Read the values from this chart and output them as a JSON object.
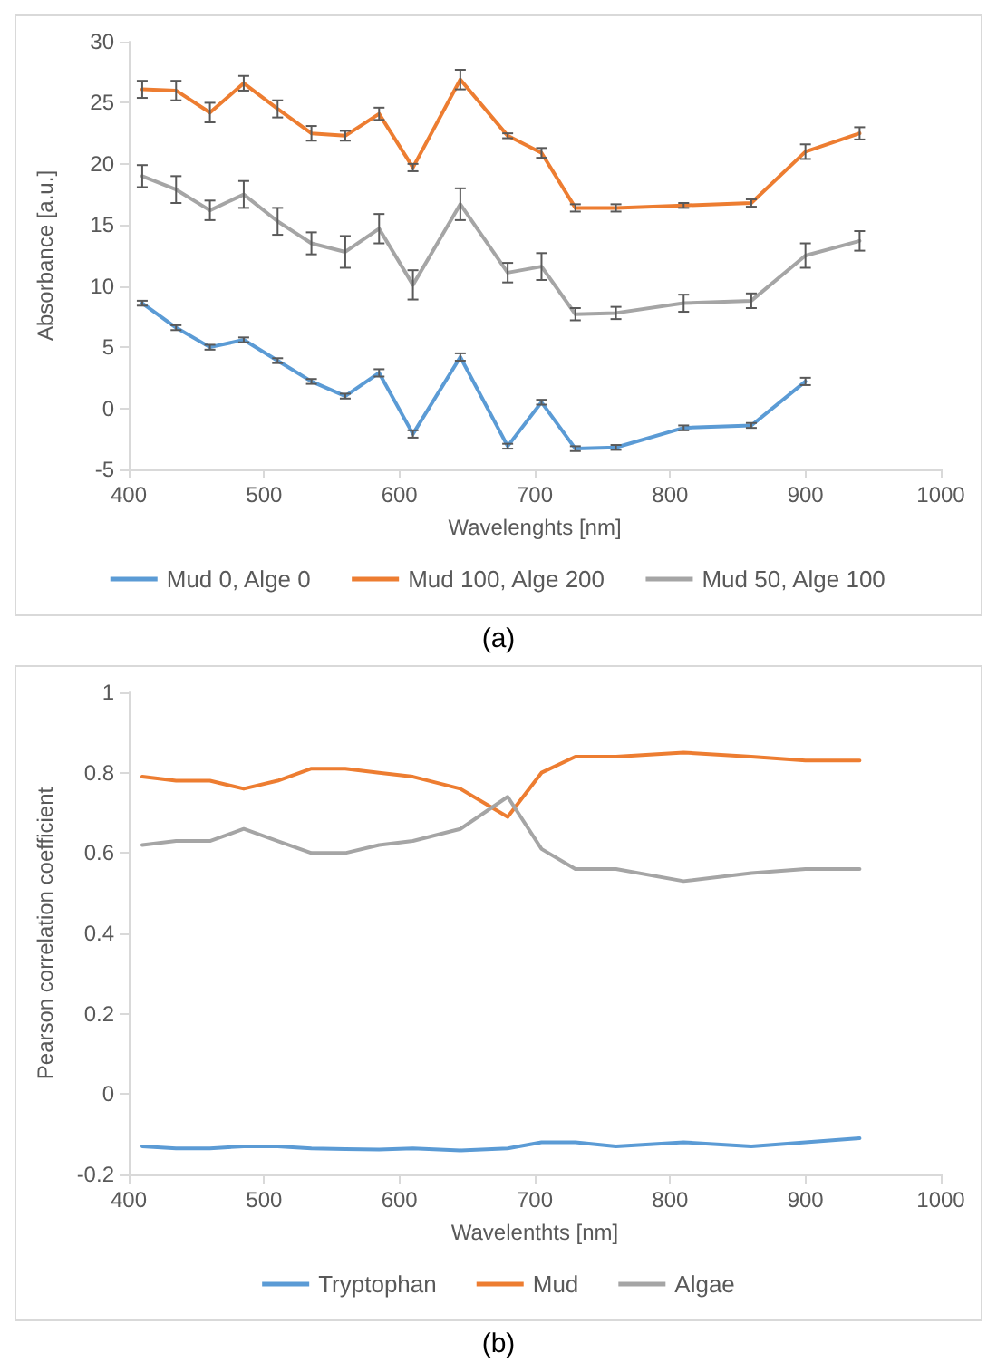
{
  "chart_data": [
    {
      "type": "line",
      "xlabel": "Wavelenghts [nm]",
      "ylabel": "Absorbance [a.u.]",
      "xlim": [
        400,
        1000
      ],
      "xticks": [
        400,
        500,
        600,
        700,
        800,
        900,
        1000
      ],
      "ylim": [
        -5,
        30
      ],
      "yticks": [
        -5,
        0,
        5,
        10,
        15,
        20,
        25,
        30
      ],
      "grid": false,
      "legend": "bottom",
      "marker": "none",
      "annotations": [
        "(a)"
      ],
      "x": [
        410,
        435,
        460,
        485,
        510,
        535,
        560,
        585,
        610,
        645,
        680,
        705,
        730,
        760,
        810,
        860,
        900,
        940
      ],
      "series": [
        {
          "name": "Mud 0, Alge 0",
          "color": "#5b9bd5",
          "values": [
            8.6,
            6.6,
            5.0,
            5.6,
            3.9,
            2.2,
            1.0,
            2.9,
            -2.1,
            4.2,
            -3.1,
            0.5,
            -3.3,
            -3.2,
            -1.6,
            -1.4,
            2.2,
            null
          ],
          "errors": [
            0.2,
            0.2,
            0.2,
            0.2,
            0.2,
            0.2,
            0.2,
            0.3,
            0.3,
            0.3,
            0.2,
            0.2,
            0.2,
            0.2,
            0.2,
            0.2,
            0.3,
            null
          ]
        },
        {
          "name": "Mud 100, Alge 200",
          "color": "#ed7d31",
          "values": [
            26.1,
            26.0,
            24.2,
            26.6,
            24.5,
            22.5,
            22.3,
            24.1,
            19.7,
            26.9,
            22.3,
            20.9,
            16.4,
            16.4,
            16.6,
            16.8,
            21.0,
            22.5
          ],
          "errors": [
            0.7,
            0.8,
            0.8,
            0.6,
            0.7,
            0.6,
            0.4,
            0.5,
            0.3,
            0.8,
            0.2,
            0.4,
            0.3,
            0.3,
            0.2,
            0.3,
            0.6,
            0.5
          ]
        },
        {
          "name": "Mud 50, Alge 100",
          "color": "#a5a5a5",
          "values": [
            19.0,
            17.9,
            16.2,
            17.5,
            15.3,
            13.5,
            12.8,
            14.7,
            10.1,
            16.7,
            11.1,
            11.6,
            7.7,
            7.8,
            8.6,
            8.8,
            12.5,
            13.7
          ],
          "errors": [
            0.9,
            1.1,
            0.8,
            1.1,
            1.1,
            0.9,
            1.3,
            1.2,
            1.2,
            1.3,
            0.8,
            1.1,
            0.5,
            0.5,
            0.7,
            0.6,
            1.0,
            0.8
          ]
        }
      ]
    },
    {
      "type": "line",
      "xlabel": "Wavelenthts [nm]",
      "ylabel": "Pearson correlation coefficient",
      "xlim": [
        400,
        1000
      ],
      "xticks": [
        400,
        500,
        600,
        700,
        800,
        900,
        1000
      ],
      "ylim": [
        -0.2,
        1
      ],
      "yticks": [
        -0.2,
        0,
        0.2,
        0.4,
        0.6,
        0.8,
        1
      ],
      "grid": false,
      "legend": "bottom",
      "marker": "none",
      "annotations": [
        "(b)"
      ],
      "x": [
        410,
        435,
        460,
        485,
        510,
        535,
        560,
        585,
        610,
        645,
        680,
        705,
        730,
        760,
        810,
        860,
        900,
        940
      ],
      "series": [
        {
          "name": "Tryptophan",
          "color": "#5b9bd5",
          "values": [
            -0.13,
            -0.135,
            -0.135,
            -0.13,
            -0.13,
            -0.135,
            -0.137,
            -0.138,
            -0.135,
            -0.14,
            -0.135,
            -0.12,
            -0.12,
            -0.13,
            -0.12,
            -0.13,
            -0.12,
            -0.11
          ]
        },
        {
          "name": "Mud",
          "color": "#ed7d31",
          "values": [
            0.79,
            0.78,
            0.78,
            0.76,
            0.78,
            0.81,
            0.81,
            0.8,
            0.79,
            0.76,
            0.69,
            0.8,
            0.84,
            0.84,
            0.85,
            0.84,
            0.83,
            0.83
          ]
        },
        {
          "name": "Algae",
          "color": "#a5a5a5",
          "values": [
            0.62,
            0.63,
            0.63,
            0.66,
            0.63,
            0.6,
            0.6,
            0.62,
            0.63,
            0.66,
            0.74,
            0.61,
            0.56,
            0.56,
            0.53,
            0.55,
            0.56,
            0.56
          ]
        }
      ]
    }
  ]
}
